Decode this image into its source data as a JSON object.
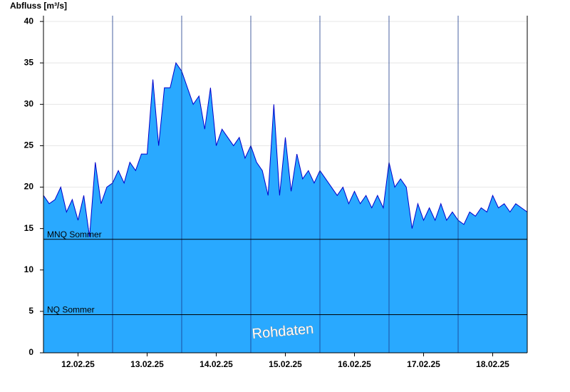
{
  "chart_data": {
    "type": "area",
    "y_label": "Abfluss [m³/s]",
    "annotation": "Rohdaten",
    "color": "#29a9ff",
    "line_color": "#0000cc",
    "xlim": [
      "12.02.25 00:00",
      "19.02.25 00:00"
    ],
    "xticks": [
      {
        "value": "12.02.25 12:00",
        "label": "12.02.25"
      },
      {
        "value": "13.02.25 12:00",
        "label": "13.02.25"
      },
      {
        "value": "14.02.25 12:00",
        "label": "14.02.25"
      },
      {
        "value": "15.02.25 12:00",
        "label": "15.02.25"
      },
      {
        "value": "16.02.25 12:00",
        "label": "16.02.25"
      },
      {
        "value": "17.02.25 12:00",
        "label": "17.02.25"
      },
      {
        "value": "18.02.25 12:00",
        "label": "18.02.25"
      }
    ],
    "xgrid": [
      "13.02.25 00:00",
      "14.02.25 00:00",
      "15.02.25 00:00",
      "16.02.25 00:00",
      "17.02.25 00:00",
      "18.02.25 00:00"
    ],
    "ylim": [
      0,
      40.7
    ],
    "yticks": [
      0,
      5,
      10,
      15,
      20,
      25,
      30,
      35,
      40
    ],
    "grid": true,
    "reference_lines": [
      {
        "label": "MNQ Sommer",
        "value": 13.7
      },
      {
        "label": "NQ Sommer",
        "value": 4.6
      }
    ],
    "x": [
      "12.02.25 00:00",
      "12.02.25 02:00",
      "12.02.25 04:00",
      "12.02.25 06:00",
      "12.02.25 08:00",
      "12.02.25 10:00",
      "12.02.25 12:00",
      "12.02.25 14:00",
      "12.02.25 16:00",
      "12.02.25 18:00",
      "12.02.25 20:00",
      "12.02.25 22:00",
      "13.02.25 00:00",
      "13.02.25 02:00",
      "13.02.25 04:00",
      "13.02.25 06:00",
      "13.02.25 08:00",
      "13.02.25 10:00",
      "13.02.25 12:00",
      "13.02.25 14:00",
      "13.02.25 16:00",
      "13.02.25 18:00",
      "13.02.25 20:00",
      "13.02.25 22:00",
      "14.02.25 00:00",
      "14.02.25 02:00",
      "14.02.25 04:00",
      "14.02.25 06:00",
      "14.02.25 08:00",
      "14.02.25 10:00",
      "14.02.25 12:00",
      "14.02.25 14:00",
      "14.02.25 16:00",
      "14.02.25 18:00",
      "14.02.25 20:00",
      "14.02.25 22:00",
      "15.02.25 00:00",
      "15.02.25 02:00",
      "15.02.25 04:00",
      "15.02.25 06:00",
      "15.02.25 08:00",
      "15.02.25 10:00",
      "15.02.25 12:00",
      "15.02.25 14:00",
      "15.02.25 16:00",
      "15.02.25 18:00",
      "15.02.25 20:00",
      "15.02.25 22:00",
      "16.02.25 00:00",
      "16.02.25 02:00",
      "16.02.25 04:00",
      "16.02.25 06:00",
      "16.02.25 08:00",
      "16.02.25 10:00",
      "16.02.25 12:00",
      "16.02.25 14:00",
      "16.02.25 16:00",
      "16.02.25 18:00",
      "16.02.25 20:00",
      "16.02.25 22:00",
      "17.02.25 00:00",
      "17.02.25 02:00",
      "17.02.25 04:00",
      "17.02.25 06:00",
      "17.02.25 08:00",
      "17.02.25 10:00",
      "17.02.25 12:00",
      "17.02.25 14:00",
      "17.02.25 16:00",
      "17.02.25 18:00",
      "17.02.25 20:00",
      "17.02.25 22:00",
      "18.02.25 00:00",
      "18.02.25 02:00",
      "18.02.25 04:00",
      "18.02.25 06:00",
      "18.02.25 08:00",
      "18.02.25 10:00",
      "18.02.25 12:00",
      "18.02.25 14:00",
      "18.02.25 16:00",
      "18.02.25 18:00",
      "18.02.25 20:00",
      "18.02.25 22:00",
      "19.02.25 00:00"
    ],
    "values": [
      19,
      18,
      18.5,
      20,
      17,
      18.5,
      16,
      19,
      14,
      23,
      18,
      20,
      20.5,
      22,
      20.5,
      23,
      22,
      24,
      24,
      33,
      25,
      32,
      32,
      35,
      34,
      32,
      30,
      31,
      27,
      32,
      25,
      27,
      26,
      25,
      26,
      23.5,
      25,
      23,
      22,
      19,
      30,
      19,
      26,
      19.5,
      24,
      21,
      22,
      20.5,
      22,
      21,
      20,
      19,
      20,
      18,
      19.5,
      18,
      19,
      17.5,
      19,
      17.5,
      23,
      20,
      21,
      20,
      15,
      18,
      16,
      17.5,
      16,
      18,
      16,
      17,
      16,
      15.5,
      17,
      16.5,
      17.5,
      17,
      19,
      17.5,
      18,
      17,
      18,
      17.5,
      17
    ]
  }
}
